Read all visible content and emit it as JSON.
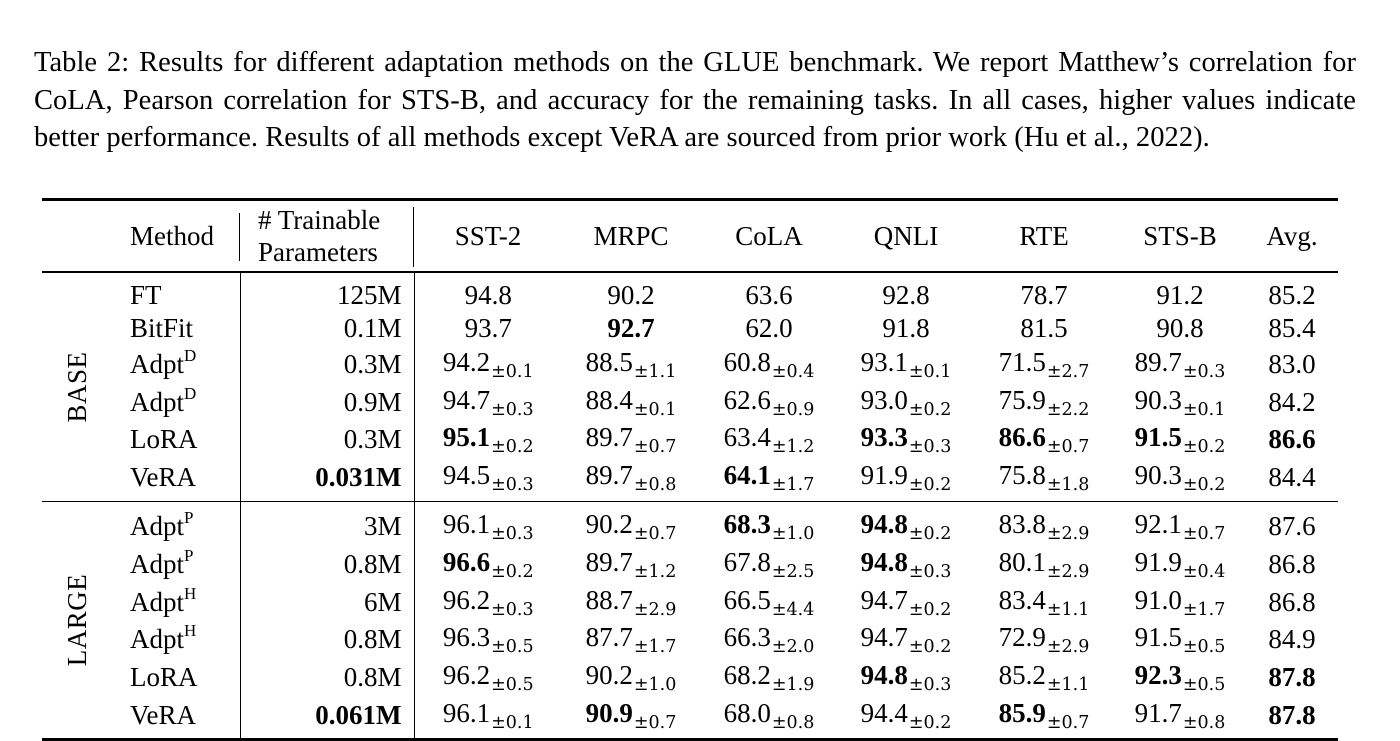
{
  "caption": "Table 2: Results for different adaptation methods on the GLUE benchmark. We report Matthew’s correlation for CoLA, Pearson correlation for STS-B, and accuracy for the remaining tasks. In all cases, higher values indicate better performance. Results of all methods except VeRA are sourced from prior work (Hu et al., 2022).",
  "header": {
    "method": "Method",
    "params_line1": "# Trainable",
    "params_line2": "Parameters",
    "tasks": [
      "SST-2",
      "MRPC",
      "CoLA",
      "QNLI",
      "RTE",
      "STS-B",
      "Avg."
    ]
  },
  "groups": [
    {
      "label_first": "B",
      "label_rest": "ASE",
      "rows": [
        {
          "method": "FT",
          "sup": "",
          "params": "125M",
          "params_bold": false,
          "cells": [
            {
              "v": "94.8",
              "pm": "",
              "b": false
            },
            {
              "v": "90.2",
              "pm": "",
              "b": false
            },
            {
              "v": "63.6",
              "pm": "",
              "b": false
            },
            {
              "v": "92.8",
              "pm": "",
              "b": false
            },
            {
              "v": "78.7",
              "pm": "",
              "b": false
            },
            {
              "v": "91.2",
              "pm": "",
              "b": false
            },
            {
              "v": "85.2",
              "pm": "",
              "b": false
            }
          ]
        },
        {
          "method": "BitFit",
          "sup": "",
          "params": "0.1M",
          "params_bold": false,
          "cells": [
            {
              "v": "93.7",
              "pm": "",
              "b": false
            },
            {
              "v": "92.7",
              "pm": "",
              "b": true
            },
            {
              "v": "62.0",
              "pm": "",
              "b": false
            },
            {
              "v": "91.8",
              "pm": "",
              "b": false
            },
            {
              "v": "81.5",
              "pm": "",
              "b": false
            },
            {
              "v": "90.8",
              "pm": "",
              "b": false
            },
            {
              "v": "85.4",
              "pm": "",
              "b": false
            }
          ]
        },
        {
          "method": "Adpt",
          "sup": "D",
          "params": "0.3M",
          "params_bold": false,
          "cells": [
            {
              "v": "94.2",
              "pm": "±0.1",
              "b": false
            },
            {
              "v": "88.5",
              "pm": "±1.1",
              "b": false
            },
            {
              "v": "60.8",
              "pm": "±0.4",
              "b": false
            },
            {
              "v": "93.1",
              "pm": "±0.1",
              "b": false
            },
            {
              "v": "71.5",
              "pm": "±2.7",
              "b": false
            },
            {
              "v": "89.7",
              "pm": "±0.3",
              "b": false
            },
            {
              "v": "83.0",
              "pm": "",
              "b": false
            }
          ]
        },
        {
          "method": "Adpt",
          "sup": "D",
          "params": "0.9M",
          "params_bold": false,
          "cells": [
            {
              "v": "94.7",
              "pm": "±0.3",
              "b": false
            },
            {
              "v": "88.4",
              "pm": "±0.1",
              "b": false
            },
            {
              "v": "62.6",
              "pm": "±0.9",
              "b": false
            },
            {
              "v": "93.0",
              "pm": "±0.2",
              "b": false
            },
            {
              "v": "75.9",
              "pm": "±2.2",
              "b": false
            },
            {
              "v": "90.3",
              "pm": "±0.1",
              "b": false
            },
            {
              "v": "84.2",
              "pm": "",
              "b": false
            }
          ]
        },
        {
          "method": "LoRA",
          "sup": "",
          "params": "0.3M",
          "params_bold": false,
          "cells": [
            {
              "v": "95.1",
              "pm": "±0.2",
              "b": true
            },
            {
              "v": "89.7",
              "pm": "±0.7",
              "b": false
            },
            {
              "v": "63.4",
              "pm": "±1.2",
              "b": false
            },
            {
              "v": "93.3",
              "pm": "±0.3",
              "b": true
            },
            {
              "v": "86.6",
              "pm": "±0.7",
              "b": true
            },
            {
              "v": "91.5",
              "pm": "±0.2",
              "b": true
            },
            {
              "v": "86.6",
              "pm": "",
              "b": true
            }
          ]
        },
        {
          "method": "VeRA",
          "sup": "",
          "params": "0.031M",
          "params_bold": true,
          "cells": [
            {
              "v": "94.5",
              "pm": "±0.3",
              "b": false
            },
            {
              "v": "89.7",
              "pm": "±0.8",
              "b": false
            },
            {
              "v": "64.1",
              "pm": "±1.7",
              "b": true
            },
            {
              "v": "91.9",
              "pm": "±0.2",
              "b": false
            },
            {
              "v": "75.8",
              "pm": "±1.8",
              "b": false
            },
            {
              "v": "90.3",
              "pm": "±0.2",
              "b": false
            },
            {
              "v": "84.4",
              "pm": "",
              "b": false
            }
          ]
        }
      ]
    },
    {
      "label_first": "L",
      "label_rest": "ARGE",
      "rows": [
        {
          "method": "Adpt",
          "sup": "P",
          "params": "3M",
          "params_bold": false,
          "cells": [
            {
              "v": "96.1",
              "pm": "±0.3",
              "b": false
            },
            {
              "v": "90.2",
              "pm": "±0.7",
              "b": false
            },
            {
              "v": "68.3",
              "pm": "±1.0",
              "b": true
            },
            {
              "v": "94.8",
              "pm": "±0.2",
              "b": true
            },
            {
              "v": "83.8",
              "pm": "±2.9",
              "b": false
            },
            {
              "v": "92.1",
              "pm": "±0.7",
              "b": false
            },
            {
              "v": "87.6",
              "pm": "",
              "b": false
            }
          ]
        },
        {
          "method": "Adpt",
          "sup": "P",
          "params": "0.8M",
          "params_bold": false,
          "cells": [
            {
              "v": "96.6",
              "pm": "±0.2",
              "b": true
            },
            {
              "v": "89.7",
              "pm": "±1.2",
              "b": false
            },
            {
              "v": "67.8",
              "pm": "±2.5",
              "b": false
            },
            {
              "v": "94.8",
              "pm": "±0.3",
              "b": true
            },
            {
              "v": "80.1",
              "pm": "±2.9",
              "b": false
            },
            {
              "v": "91.9",
              "pm": "±0.4",
              "b": false
            },
            {
              "v": "86.8",
              "pm": "",
              "b": false
            }
          ]
        },
        {
          "method": "Adpt",
          "sup": "H",
          "params": "6M",
          "params_bold": false,
          "cells": [
            {
              "v": "96.2",
              "pm": "±0.3",
              "b": false
            },
            {
              "v": "88.7",
              "pm": "±2.9",
              "b": false
            },
            {
              "v": "66.5",
              "pm": "±4.4",
              "b": false
            },
            {
              "v": "94.7",
              "pm": "±0.2",
              "b": false
            },
            {
              "v": "83.4",
              "pm": "±1.1",
              "b": false
            },
            {
              "v": "91.0",
              "pm": "±1.7",
              "b": false
            },
            {
              "v": "86.8",
              "pm": "",
              "b": false
            }
          ]
        },
        {
          "method": "Adpt",
          "sup": "H",
          "params": "0.8M",
          "params_bold": false,
          "cells": [
            {
              "v": "96.3",
              "pm": "±0.5",
              "b": false
            },
            {
              "v": "87.7",
              "pm": "±1.7",
              "b": false
            },
            {
              "v": "66.3",
              "pm": "±2.0",
              "b": false
            },
            {
              "v": "94.7",
              "pm": "±0.2",
              "b": false
            },
            {
              "v": "72.9",
              "pm": "±2.9",
              "b": false
            },
            {
              "v": "91.5",
              "pm": "±0.5",
              "b": false
            },
            {
              "v": "84.9",
              "pm": "",
              "b": false
            }
          ]
        },
        {
          "method": "LoRA",
          "sup": "",
          "params": "0.8M",
          "params_bold": false,
          "cells": [
            {
              "v": "96.2",
              "pm": "±0.5",
              "b": false
            },
            {
              "v": "90.2",
              "pm": "±1.0",
              "b": false
            },
            {
              "v": "68.2",
              "pm": "±1.9",
              "b": false
            },
            {
              "v": "94.8",
              "pm": "±0.3",
              "b": true
            },
            {
              "v": "85.2",
              "pm": "±1.1",
              "b": false
            },
            {
              "v": "92.3",
              "pm": "±0.5",
              "b": true
            },
            {
              "v": "87.8",
              "pm": "",
              "b": true
            }
          ]
        },
        {
          "method": "VeRA",
          "sup": "",
          "params": "0.061M",
          "params_bold": true,
          "cells": [
            {
              "v": "96.1",
              "pm": "±0.1",
              "b": false
            },
            {
              "v": "90.9",
              "pm": "±0.7",
              "b": true
            },
            {
              "v": "68.0",
              "pm": "±0.8",
              "b": false
            },
            {
              "v": "94.4",
              "pm": "±0.2",
              "b": false
            },
            {
              "v": "85.9",
              "pm": "±0.7",
              "b": true
            },
            {
              "v": "91.7",
              "pm": "±0.8",
              "b": false
            },
            {
              "v": "87.8",
              "pm": "",
              "b": true
            }
          ]
        }
      ]
    }
  ]
}
